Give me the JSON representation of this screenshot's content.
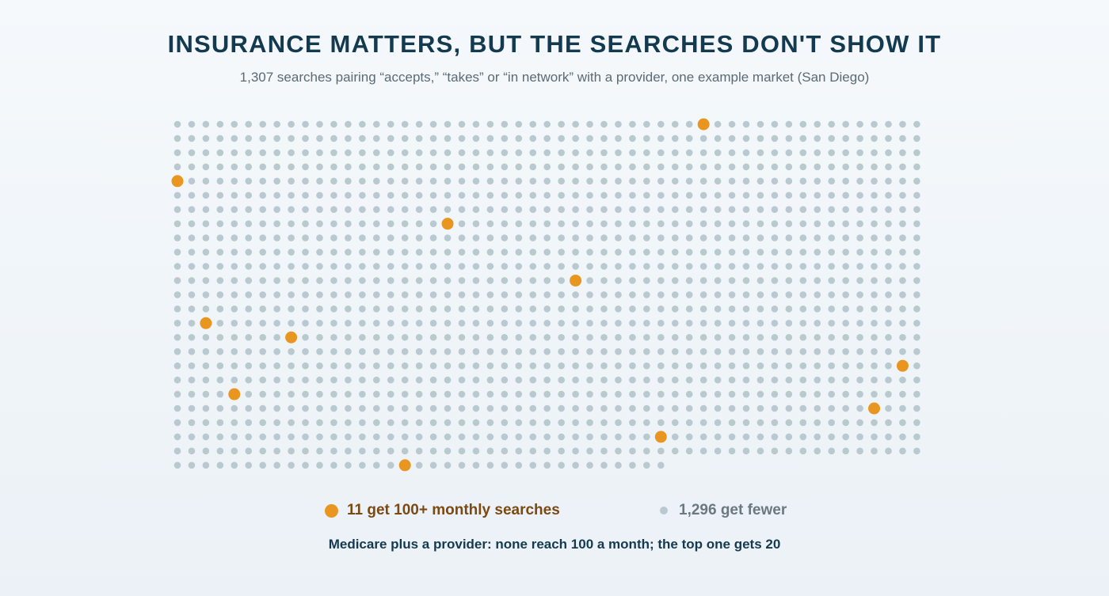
{
  "header": {
    "title": "INSURANCE MATTERS, BUT THE SEARCHES DON'T SHOW IT",
    "subtitle": "1,307 searches pairing “accepts,” “takes” or “in network” with a provider, one example market (San Diego)"
  },
  "legend": {
    "highlight_label": "11 get 100+ monthly searches",
    "rest_label": "1,296 get fewer"
  },
  "note": "Medicare plus a provider: none reach 100 a month; the top one gets 20",
  "colors": {
    "highlight": "#e8961f",
    "rest": "#b8c9d0",
    "title": "#143a50"
  },
  "chart_data": {
    "type": "waffle",
    "total": 1307,
    "columns": 53,
    "groups": [
      {
        "name": "100+ monthly searches",
        "count": 11,
        "color": "#e8961f"
      },
      {
        "name": "fewer",
        "count": 1296,
        "color": "#b8c9d0"
      }
    ],
    "highlighted_cells": [
      [
        0,
        37
      ],
      [
        4,
        0
      ],
      [
        7,
        19
      ],
      [
        11,
        28
      ],
      [
        14,
        2
      ],
      [
        15,
        8
      ],
      [
        17,
        51
      ],
      [
        19,
        4
      ],
      [
        20,
        49
      ],
      [
        22,
        34
      ],
      [
        24,
        16
      ]
    ]
  }
}
